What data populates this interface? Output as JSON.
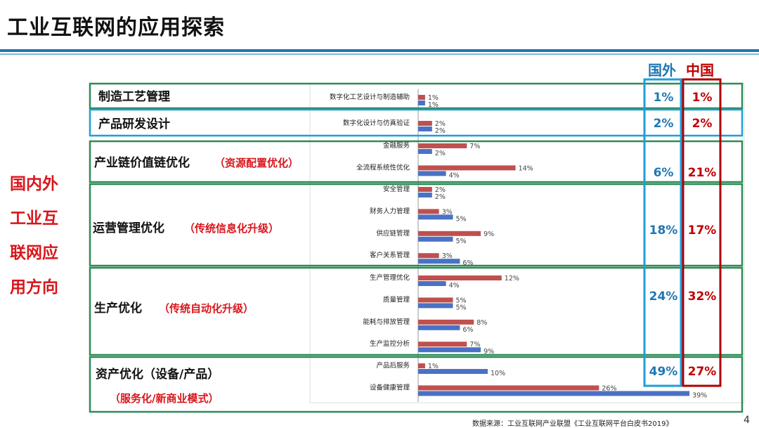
{
  "title": "工业互联网的应用探索",
  "side_label": [
    "国内外",
    "工业互",
    "联网应",
    "用方向"
  ],
  "column_headers": {
    "foreign": "国外",
    "china": "中国"
  },
  "colors": {
    "foreign": "#4a72c4",
    "china": "#c0504d",
    "foreign_text": "#1f77b4",
    "china_text": "#c00000",
    "side": "#d9161c"
  },
  "source": "数据来源：工业互联网产业联盟《工业互联网平台白皮书2019》",
  "page_number": "4",
  "chart_data": {
    "type": "bar",
    "orientation": "horizontal",
    "categories": [
      {
        "name": "制造工艺管理",
        "sub": "",
        "foreign_total": "1%",
        "china_total": "1%",
        "items": [
          {
            "label": "数字化工艺设计与制造辅助",
            "china": 1,
            "foreign": 1
          }
        ]
      },
      {
        "name": "产品研发设计",
        "sub": "",
        "foreign_total": "2%",
        "china_total": "2%",
        "items": [
          {
            "label": "数字化设计与仿真验证",
            "china": 2,
            "foreign": 2
          }
        ]
      },
      {
        "name": "产业链价值链优化",
        "sub": "（资源配置优化）",
        "foreign_total": "6%",
        "china_total": "21%",
        "items": [
          {
            "label": "金融服务",
            "china": 7,
            "foreign": 2
          },
          {
            "label": "全流程系统性优化",
            "china": 14,
            "foreign": 4
          }
        ]
      },
      {
        "name": "运营管理优化",
        "sub": "（传统信息化升级）",
        "foreign_total": "18%",
        "china_total": "17%",
        "items": [
          {
            "label": "安全管理",
            "china": 2,
            "foreign": 2
          },
          {
            "label": "财务人力管理",
            "china": 3,
            "foreign": 5
          },
          {
            "label": "供应链管理",
            "china": 9,
            "foreign": 5
          },
          {
            "label": "客户关系管理",
            "china": 3,
            "foreign": 6
          }
        ]
      },
      {
        "name": "生产优化",
        "sub": "（传统自动化升级）",
        "foreign_total": "24%",
        "china_total": "32%",
        "items": [
          {
            "label": "生产管理优化",
            "china": 12,
            "foreign": 4
          },
          {
            "label": "质量管理",
            "china": 5,
            "foreign": 5
          },
          {
            "label": "能耗与排放管理",
            "china": 8,
            "foreign": 6
          },
          {
            "label": "生产监控分析",
            "china": 7,
            "foreign": 9
          }
        ]
      },
      {
        "name": "资产优化（设备/产品）",
        "sub": "（服务化/新商业模式）",
        "foreign_total": "49%",
        "china_total": "27%",
        "items": [
          {
            "label": "产品后服务",
            "china": 1,
            "foreign": 10
          },
          {
            "label": "设备健康管理",
            "china": 26,
            "foreign": 39
          }
        ]
      }
    ],
    "series": [
      {
        "name": "中国",
        "key": "china"
      },
      {
        "name": "国外",
        "key": "foreign"
      }
    ],
    "xlim": [
      0,
      40
    ],
    "value_suffix": "%"
  }
}
